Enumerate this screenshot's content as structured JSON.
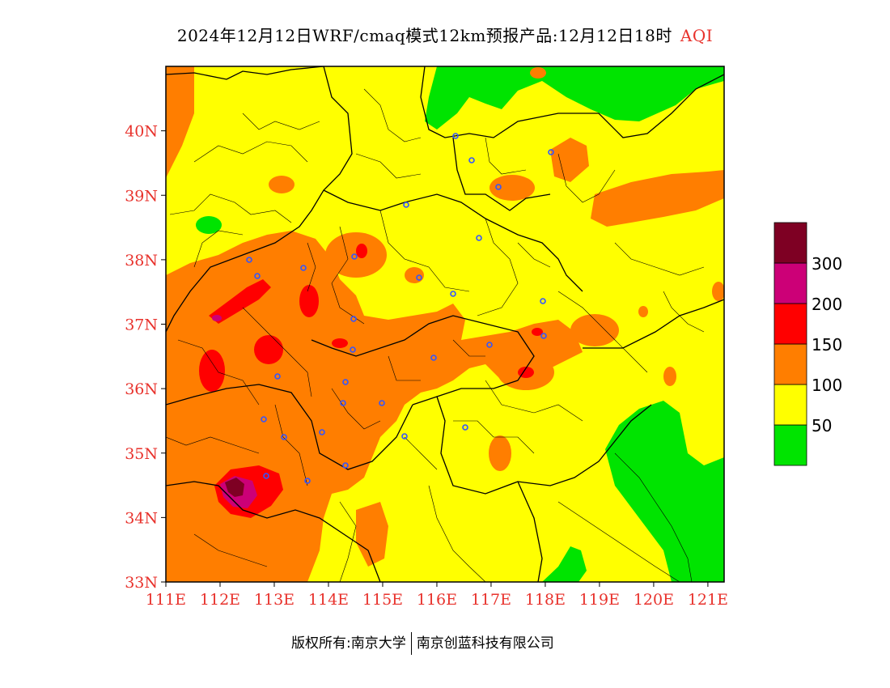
{
  "title": {
    "main": "2024年12月12日WRF/cmaq模式12km预报产品:12月12日18时",
    "variable": "AQI"
  },
  "axes": {
    "lat_labels": [
      "40N",
      "39N",
      "38N",
      "37N",
      "36N",
      "35N",
      "34N",
      "33N"
    ],
    "lon_labels": [
      "111E",
      "112E",
      "113E",
      "114E",
      "115E",
      "116E",
      "117E",
      "118E",
      "119E",
      "120E",
      "121E"
    ],
    "lat_range": [
      33,
      41
    ],
    "lon_range": [
      111,
      121.3
    ],
    "label_color": "#e8322c"
  },
  "legend": {
    "bins": [
      {
        "label": "",
        "color": "#00e400"
      },
      {
        "label": "50",
        "color": "#ffff00"
      },
      {
        "label": "100",
        "color": "#ff7e00"
      },
      {
        "label": "150",
        "color": "#ff0000"
      },
      {
        "label": "200",
        "color": "#cc0077"
      },
      {
        "label": "300",
        "color": "#7e0023"
      }
    ]
  },
  "footer": {
    "copyright": "版权所有:南京大学",
    "company": "南京创蓝科技有限公司"
  }
}
